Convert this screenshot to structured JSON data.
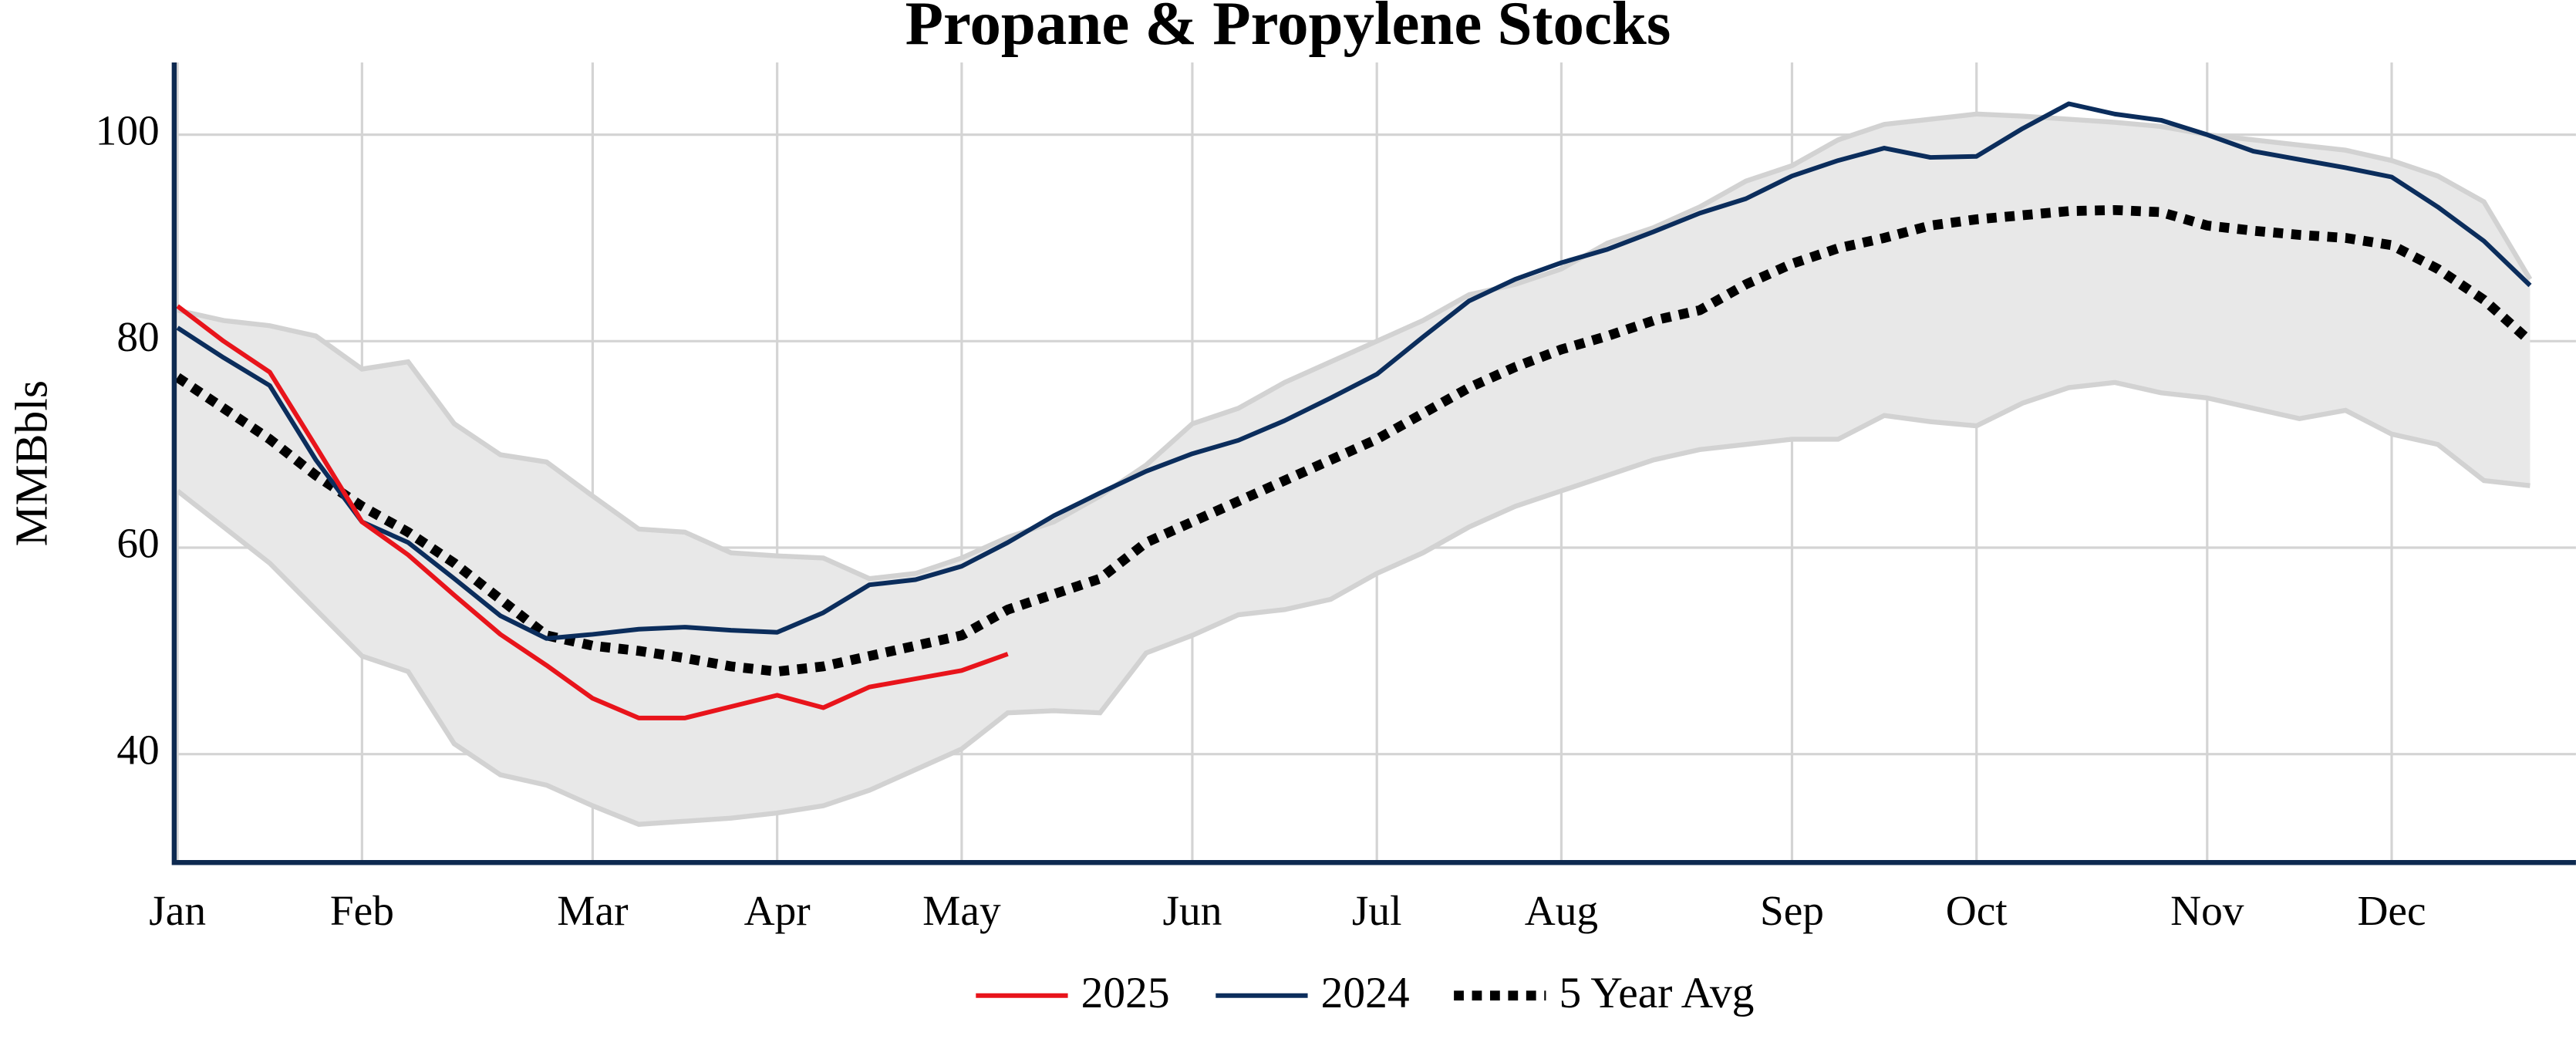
{
  "chart_data": {
    "type": "line",
    "title": "Propane & Propylene Stocks",
    "y_label": "MMBbls",
    "categories": [
      "Jan",
      null,
      null,
      null,
      "Feb",
      null,
      null,
      null,
      null,
      "Mar",
      null,
      null,
      null,
      "Apr",
      null,
      null,
      null,
      "May",
      null,
      null,
      null,
      null,
      "Jun",
      null,
      null,
      null,
      "Jul",
      null,
      null,
      null,
      "Aug",
      null,
      null,
      null,
      null,
      "Sep",
      null,
      null,
      null,
      "Oct",
      null,
      null,
      null,
      null,
      "Nov",
      null,
      null,
      null,
      "Dec",
      null,
      null,
      null
    ],
    "ylim": [
      29.5,
      107
    ],
    "yticks": [
      40,
      60,
      80,
      100
    ],
    "grid": true,
    "band": {
      "color": "#e8e8e8",
      "edge_color": "#d2d2d2",
      "high": [
        83,
        82,
        81.5,
        80.5,
        77.3,
        78,
        72,
        69,
        68.3,
        65,
        61.8,
        61.5,
        59.5,
        59.2,
        59,
        57,
        57.5,
        59,
        61,
        62.5,
        65,
        68,
        72,
        73.5,
        76,
        78,
        80,
        82,
        84.5,
        85.5,
        87,
        89.5,
        91,
        93,
        95.5,
        97,
        99.5,
        101,
        101.5,
        102,
        101.8,
        101.5,
        101.2,
        100.8,
        100,
        99.5,
        99,
        98.5,
        97.5,
        96,
        93.5,
        86
      ],
      "low": [
        65.5,
        62,
        58.5,
        54,
        49.5,
        48,
        41,
        38,
        37,
        35,
        33.2,
        33.5,
        33.8,
        34.3,
        35,
        36.5,
        38.5,
        40.5,
        44,
        44.2,
        44,
        49.8,
        51.5,
        53.5,
        54,
        55,
        57.5,
        59.5,
        62,
        64,
        65.5,
        67,
        68.5,
        69.5,
        70,
        70.5,
        70.5,
        72.8,
        72.2,
        71.8,
        74,
        75.5,
        76,
        75,
        74.5,
        73.5,
        72.5,
        73.3,
        71,
        70,
        66.5,
        66
      ]
    },
    "series": [
      {
        "name": "2025",
        "color": "#e8141b",
        "style": "solid",
        "values": [
          83.4,
          80,
          77,
          69.8,
          62.5,
          59.3,
          55.4,
          51.6,
          48.6,
          45.4,
          43.5,
          43.5,
          44.6,
          45.7,
          44.5,
          46.5,
          47.3,
          48.1,
          49.7,
          null,
          null,
          null,
          null,
          null,
          null,
          null,
          null,
          null,
          null,
          null,
          null,
          null,
          null,
          null,
          null,
          null,
          null,
          null,
          null,
          null,
          null,
          null,
          null,
          null,
          null,
          null,
          null,
          null,
          null,
          null,
          null,
          null
        ]
      },
      {
        "name": "2024",
        "color": "#0b2d5c",
        "style": "solid",
        "values": [
          81.3,
          78.4,
          75.7,
          68.5,
          62.5,
          60.5,
          57,
          53.4,
          51.2,
          51.6,
          52.1,
          52.3,
          52,
          51.8,
          53.7,
          56.4,
          56.9,
          58.2,
          60.5,
          63.1,
          65.3,
          67.4,
          69.1,
          70.4,
          72.3,
          74.5,
          76.8,
          80.4,
          83.9,
          86,
          87.6,
          88.9,
          90.6,
          92.4,
          93.8,
          96,
          97.5,
          98.7,
          97.8,
          97.9,
          100.6,
          103,
          102,
          101.4,
          100,
          98.4,
          97.6,
          96.8,
          95.9,
          93,
          89.7,
          85.4
        ]
      },
      {
        "name": "5 Year Avg",
        "color": "#000000",
        "style": "dotted",
        "values": [
          76.5,
          73.5,
          70.5,
          67,
          64,
          61.5,
          58.5,
          55,
          51.5,
          50.5,
          50,
          49.3,
          48.5,
          48,
          48.5,
          49.5,
          50.5,
          51.5,
          54,
          55.5,
          57,
          60.5,
          62.5,
          64.5,
          66.5,
          68.5,
          70.5,
          73,
          75.5,
          77.5,
          79.2,
          80.5,
          82,
          83,
          85.5,
          87.5,
          89,
          90,
          91.2,
          91.8,
          92.2,
          92.6,
          92.7,
          92.5,
          91.2,
          90.7,
          90.3,
          90,
          89.3,
          87,
          84,
          80
        ]
      }
    ]
  }
}
